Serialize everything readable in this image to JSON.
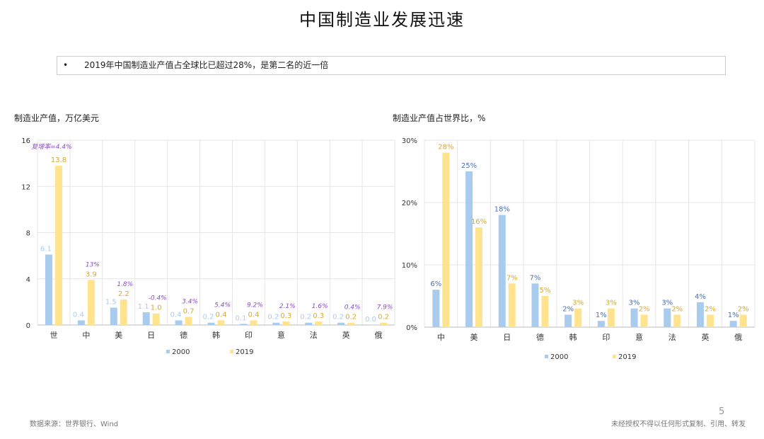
{
  "title": "中国制造业发展迅速",
  "note": {
    "bullet": "•",
    "text": "2019年中国制造业产值占全球比已超过28%，是第二名的近一倍"
  },
  "footer": {
    "source": "数据来源：世界银行、Wind",
    "page": "5",
    "disclaimer": "未经授权不得以任何形式复制、引用、转发"
  },
  "colors": {
    "s2000": "#a9cbee",
    "s2019": "#ffe38f",
    "label2000_left": "#a9cbee",
    "label2000_right": "#4a6fb5",
    "label2019": "#d4a830",
    "growth": "#8a4fc0",
    "grid": "#e6e6e6"
  },
  "chart_data": [
    {
      "type": "bar",
      "title": "制造业产值，万亿美元",
      "categories": [
        "世",
        "中",
        "美",
        "日",
        "德",
        "韩",
        "印",
        "意",
        "法",
        "英",
        "俄"
      ],
      "ylim": [
        0,
        16
      ],
      "yticks": [
        "0",
        "4",
        "8",
        "12",
        "16"
      ],
      "grid": true,
      "legend": "bottom",
      "series": [
        {
          "name": "2000",
          "values": [
            6.1,
            0.4,
            1.5,
            1.1,
            0.4,
            0.2,
            0.1,
            0.2,
            0.2,
            0.2,
            0.0
          ],
          "labels": [
            "6.1",
            "0.4",
            "1.5",
            "1.1",
            "0.4",
            "0.2",
            "0.1",
            "0.2",
            "0.2",
            "0.2",
            "0.0"
          ]
        },
        {
          "name": "2019",
          "values": [
            13.8,
            3.9,
            2.2,
            1.0,
            0.7,
            0.4,
            0.4,
            0.3,
            0.3,
            0.2,
            0.2
          ],
          "labels": [
            "13.8",
            "3.9",
            "2.2",
            "1.0",
            "0.7",
            "0.4",
            "0.4",
            "0.3",
            "0.3",
            "0.2",
            "0.2"
          ]
        }
      ],
      "annotations": [
        "复增率=4.4%",
        "13%",
        "1.8%",
        "-0.4%",
        "3.4%",
        "5.4%",
        "9.2%",
        "2.1%",
        "1.6%",
        "0.4%",
        "7.9%"
      ]
    },
    {
      "type": "bar",
      "title": "制造业产值占世界比，%",
      "categories": [
        "中",
        "美",
        "日",
        "德",
        "韩",
        "印",
        "意",
        "法",
        "英",
        "俄"
      ],
      "ylim": [
        0,
        30
      ],
      "yticks": [
        "0%",
        "10%",
        "20%",
        "30%"
      ],
      "grid": true,
      "legend": "bottom",
      "series": [
        {
          "name": "2000",
          "values": [
            6,
            25,
            18,
            7,
            2,
            1,
            3,
            3,
            4,
            1
          ],
          "labels": [
            "6%",
            "25%",
            "18%",
            "7%",
            "2%",
            "1%",
            "3%",
            "3%",
            "4%",
            "1%"
          ]
        },
        {
          "name": "2019",
          "values": [
            28,
            16,
            7,
            5,
            3,
            3,
            2,
            2,
            2,
            2
          ],
          "labels": [
            "28%",
            "16%",
            "7%",
            "5%",
            "3%",
            "3%",
            "2%",
            "2%",
            "2%",
            "2%"
          ]
        }
      ]
    }
  ]
}
